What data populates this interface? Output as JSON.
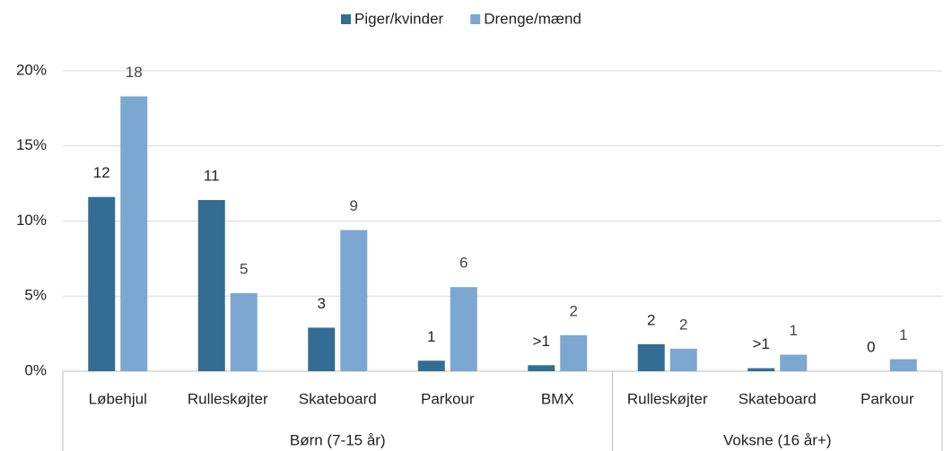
{
  "chart_data": {
    "type": "bar",
    "category_groups": [
      {
        "name": "Børn (7-15 år)",
        "categories": [
          "Løbehjul",
          "Rulleskøjter",
          "Skateboard",
          "Parkour",
          "BMX"
        ]
      },
      {
        "name": "Voksne (16 år+)",
        "categories": [
          "Rulleskøjter",
          "Skateboard",
          "Parkour"
        ]
      }
    ],
    "series": [
      {
        "name": "Piger/kvinder",
        "color": "#336d94",
        "values": [
          11.6,
          11.4,
          2.9,
          0.7,
          0.4,
          1.8,
          0.2,
          0
        ],
        "value_labels": [
          "12",
          "11",
          "3",
          "1",
          ">1",
          "2",
          ">1",
          "0"
        ]
      },
      {
        "name": "Drenge/mænd",
        "color": "#7ba7d1",
        "values": [
          18.3,
          5.2,
          9.4,
          5.6,
          2.4,
          1.5,
          1.1,
          0.8
        ],
        "value_labels": [
          "18",
          "5",
          "9",
          "6",
          "2",
          "2",
          "1",
          "1"
        ]
      }
    ],
    "ylim": [
      0,
      20
    ],
    "yticks": [
      {
        "value": 0,
        "label": "0%"
      },
      {
        "value": 5,
        "label": "5%"
      },
      {
        "value": 10,
        "label": "10%"
      },
      {
        "value": 15,
        "label": "15%"
      },
      {
        "value": 20,
        "label": "20%"
      }
    ],
    "grid": true,
    "legend": "top"
  }
}
